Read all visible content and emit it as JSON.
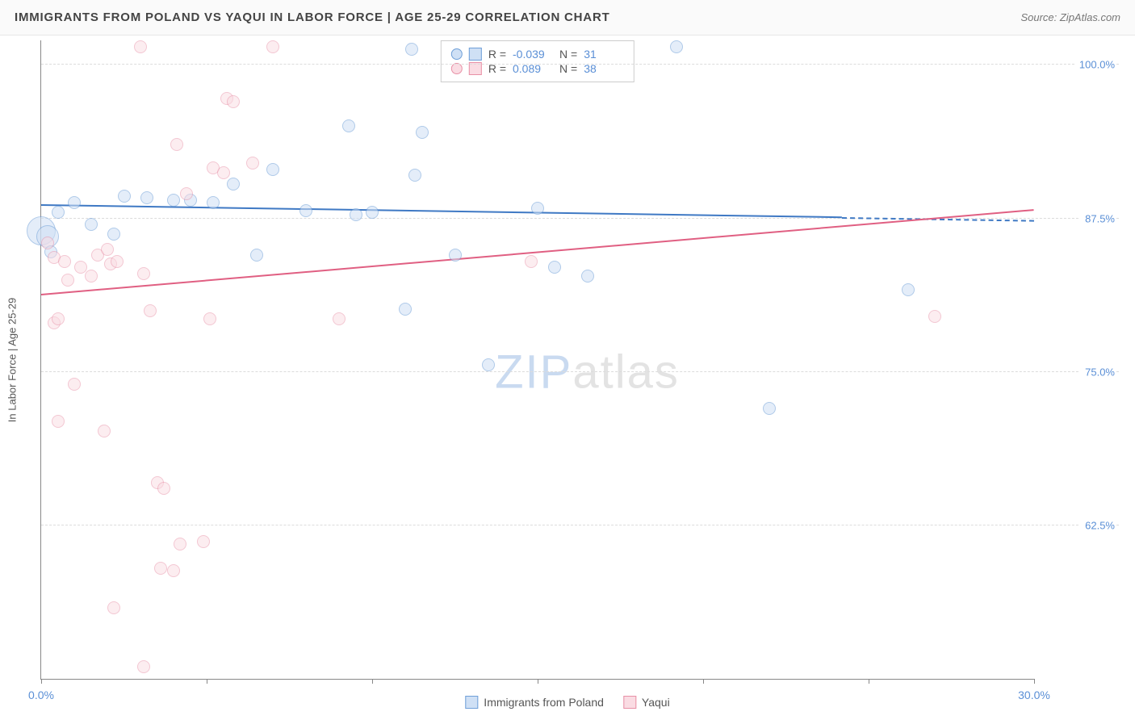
{
  "header": {
    "title": "IMMIGRANTS FROM POLAND VS YAQUI IN LABOR FORCE | AGE 25-29 CORRELATION CHART",
    "source": "Source: ZipAtlas.com"
  },
  "chart": {
    "type": "scatter",
    "ylabel": "In Labor Force | Age 25-29",
    "xlim": [
      0,
      30
    ],
    "ylim": [
      50,
      102
    ],
    "y_gridlines": [
      62.5,
      75.0,
      87.5,
      100.0
    ],
    "y_tick_labels": [
      "62.5%",
      "75.0%",
      "87.5%",
      "100.0%"
    ],
    "x_ticks": [
      0,
      5,
      10,
      15,
      20,
      25,
      30
    ],
    "x_tick_labels_shown": {
      "0": "0.0%",
      "30": "30.0%"
    },
    "background_color": "#ffffff",
    "grid_color": "#dcdcdc",
    "axis_color": "#888888",
    "tick_label_color": "#5a8fd6",
    "watermark": {
      "bold": "ZIP",
      "light": "atlas"
    },
    "stat_legend": {
      "rows": [
        {
          "swatch_fill": "#cfe0f5",
          "swatch_stroke": "#6f9fd8",
          "r_label": "R =",
          "r": "-0.039",
          "n_label": "N =",
          "n": "31"
        },
        {
          "swatch_fill": "#fadce3",
          "swatch_stroke": "#e890a6",
          "r_label": "R =",
          "r": "0.089",
          "n_label": "N =",
          "n": "38"
        }
      ]
    },
    "bottom_legend": [
      {
        "fill": "#cfe0f5",
        "stroke": "#6f9fd8",
        "label": "Immigrants from Poland"
      },
      {
        "fill": "#fadce3",
        "stroke": "#e890a6",
        "label": "Yaqui"
      }
    ],
    "series": [
      {
        "name": "Immigrants from Poland",
        "fill": "#cfe0f5",
        "stroke": "#6f9fd8",
        "fill_opacity": 0.55,
        "marker_r": 8,
        "trend": {
          "x1": 0,
          "y1": 88.5,
          "x2": 24.2,
          "y2": 87.5,
          "dash_to_x": 30,
          "color": "#3f79c4"
        },
        "points": [
          {
            "x": 0.0,
            "y": 86.5,
            "r": 18
          },
          {
            "x": 0.2,
            "y": 86.0,
            "r": 14
          },
          {
            "x": 11.2,
            "y": 101.3
          },
          {
            "x": 19.2,
            "y": 101.5
          },
          {
            "x": 9.3,
            "y": 95.0
          },
          {
            "x": 11.5,
            "y": 94.5
          },
          {
            "x": 4.0,
            "y": 89.0
          },
          {
            "x": 4.5,
            "y": 89.0
          },
          {
            "x": 5.2,
            "y": 88.8
          },
          {
            "x": 5.8,
            "y": 90.3
          },
          {
            "x": 7.0,
            "y": 91.5
          },
          {
            "x": 8.0,
            "y": 88.1
          },
          {
            "x": 9.5,
            "y": 87.8
          },
          {
            "x": 10.0,
            "y": 88.0
          },
          {
            "x": 6.5,
            "y": 84.5
          },
          {
            "x": 12.5,
            "y": 84.5
          },
          {
            "x": 11.0,
            "y": 80.1
          },
          {
            "x": 15.0,
            "y": 88.3
          },
          {
            "x": 15.5,
            "y": 83.5
          },
          {
            "x": 16.5,
            "y": 82.8
          },
          {
            "x": 13.5,
            "y": 75.6
          },
          {
            "x": 1.5,
            "y": 87.0
          },
          {
            "x": 2.2,
            "y": 86.2
          },
          {
            "x": 26.2,
            "y": 81.7
          },
          {
            "x": 22.0,
            "y": 72.0
          },
          {
            "x": 0.3,
            "y": 84.8
          },
          {
            "x": 0.5,
            "y": 88.0
          },
          {
            "x": 1.0,
            "y": 88.8
          },
          {
            "x": 2.5,
            "y": 89.3
          },
          {
            "x": 3.2,
            "y": 89.2
          },
          {
            "x": 11.3,
            "y": 91.0
          }
        ]
      },
      {
        "name": "Yaqui",
        "fill": "#fadce3",
        "stroke": "#e890a6",
        "fill_opacity": 0.5,
        "marker_r": 8,
        "trend": {
          "x1": 0,
          "y1": 81.2,
          "x2": 30,
          "y2": 88.1,
          "color": "#e05f82"
        },
        "points": [
          {
            "x": 0.2,
            "y": 85.5
          },
          {
            "x": 0.4,
            "y": 84.3
          },
          {
            "x": 0.7,
            "y": 84.0
          },
          {
            "x": 0.8,
            "y": 82.5
          },
          {
            "x": 1.2,
            "y": 83.5
          },
          {
            "x": 1.5,
            "y": 82.8
          },
          {
            "x": 1.7,
            "y": 84.5
          },
          {
            "x": 2.1,
            "y": 83.8
          },
          {
            "x": 2.3,
            "y": 84.0
          },
          {
            "x": 0.4,
            "y": 79.0
          },
          {
            "x": 0.5,
            "y": 79.3
          },
          {
            "x": 1.0,
            "y": 74.0
          },
          {
            "x": 3.0,
            "y": 101.5
          },
          {
            "x": 7.0,
            "y": 101.5
          },
          {
            "x": 4.1,
            "y": 93.5
          },
          {
            "x": 4.4,
            "y": 89.5
          },
          {
            "x": 5.2,
            "y": 91.6
          },
          {
            "x": 5.5,
            "y": 91.2
          },
          {
            "x": 5.6,
            "y": 97.3
          },
          {
            "x": 5.8,
            "y": 97.0
          },
          {
            "x": 6.4,
            "y": 92.0
          },
          {
            "x": 3.1,
            "y": 83.0
          },
          {
            "x": 3.3,
            "y": 80.0
          },
          {
            "x": 5.1,
            "y": 79.3
          },
          {
            "x": 9.0,
            "y": 79.3
          },
          {
            "x": 14.8,
            "y": 84.0
          },
          {
            "x": 27.0,
            "y": 79.5
          },
          {
            "x": 3.5,
            "y": 66.0
          },
          {
            "x": 3.7,
            "y": 65.5
          },
          {
            "x": 4.2,
            "y": 61.0
          },
          {
            "x": 4.9,
            "y": 61.2
          },
          {
            "x": 3.6,
            "y": 59.0
          },
          {
            "x": 4.0,
            "y": 58.8
          },
          {
            "x": 2.2,
            "y": 55.8
          },
          {
            "x": 3.1,
            "y": 51.0
          },
          {
            "x": 0.5,
            "y": 71.0
          },
          {
            "x": 1.9,
            "y": 70.2
          },
          {
            "x": 2.0,
            "y": 85.0
          }
        ]
      }
    ]
  }
}
